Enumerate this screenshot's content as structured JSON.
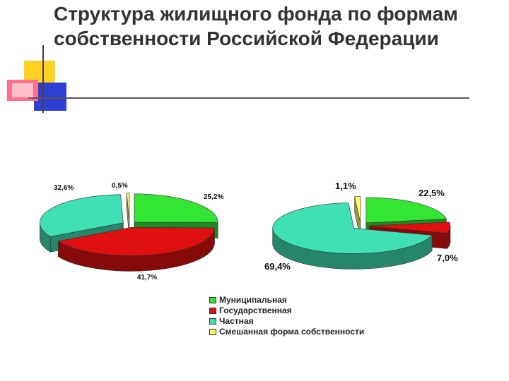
{
  "slide": {
    "title": "Структура жилищного фонда по формам собственности Российской Федерации"
  },
  "chart_data": [
    {
      "type": "pie",
      "categories": [
        "Муниципальная",
        "Государственная",
        "Частная",
        "Смешанная форма собственности"
      ],
      "values": [
        25.2,
        41.7,
        32.6,
        0.5
      ],
      "value_labels": [
        "25,2%",
        "41,7%",
        "32,6%",
        "0,5%"
      ],
      "colors": [
        "#33e633",
        "#e01010",
        "#3fe0b4",
        "#ffff66"
      ],
      "legend": "bottom"
    },
    {
      "type": "pie",
      "categories": [
        "Муниципальная",
        "Государственная",
        "Частная",
        "Смешанная форма собственности"
      ],
      "values": [
        22.5,
        7.0,
        69.4,
        1.1
      ],
      "value_labels": [
        "22,5%",
        "7,0%",
        "69,4%",
        "1,1%"
      ],
      "colors": [
        "#33e633",
        "#e01010",
        "#3fe0b4",
        "#ffff66"
      ],
      "legend": "bottom"
    }
  ],
  "legend": {
    "items": [
      {
        "label": "Муниципальная",
        "color": "#33e633"
      },
      {
        "label": "Государственная",
        "color": "#e01010"
      },
      {
        "label": "Частная",
        "color": "#3fe0b4"
      },
      {
        "label": "Смешанная форма собственности",
        "color": "#ffff66"
      }
    ]
  }
}
